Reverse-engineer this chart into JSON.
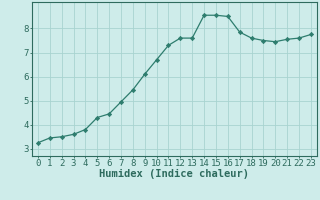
{
  "x": [
    0,
    1,
    2,
    3,
    4,
    5,
    6,
    7,
    8,
    9,
    10,
    11,
    12,
    13,
    14,
    15,
    16,
    17,
    18,
    19,
    20,
    21,
    22,
    23
  ],
  "y": [
    3.25,
    3.45,
    3.5,
    3.6,
    3.8,
    4.3,
    4.45,
    4.95,
    5.45,
    6.1,
    6.7,
    7.3,
    7.6,
    7.6,
    8.55,
    8.55,
    8.5,
    7.85,
    7.6,
    7.5,
    7.45,
    7.55,
    7.6,
    7.75
  ],
  "line_color": "#2e7d6e",
  "marker": "D",
  "marker_size": 2.2,
  "bg_color": "#ceecea",
  "grid_color": "#a8d4d0",
  "xlabel": "Humidex (Indice chaleur)",
  "xlabel_fontsize": 7.5,
  "ylabel_ticks": [
    3,
    4,
    5,
    6,
    7,
    8
  ],
  "xlim": [
    -0.5,
    23.5
  ],
  "ylim": [
    2.7,
    9.1
  ],
  "tick_fontsize": 6.5,
  "axis_color": "#2e6b5e",
  "spine_color": "#2e6b5e",
  "linewidth": 0.9
}
